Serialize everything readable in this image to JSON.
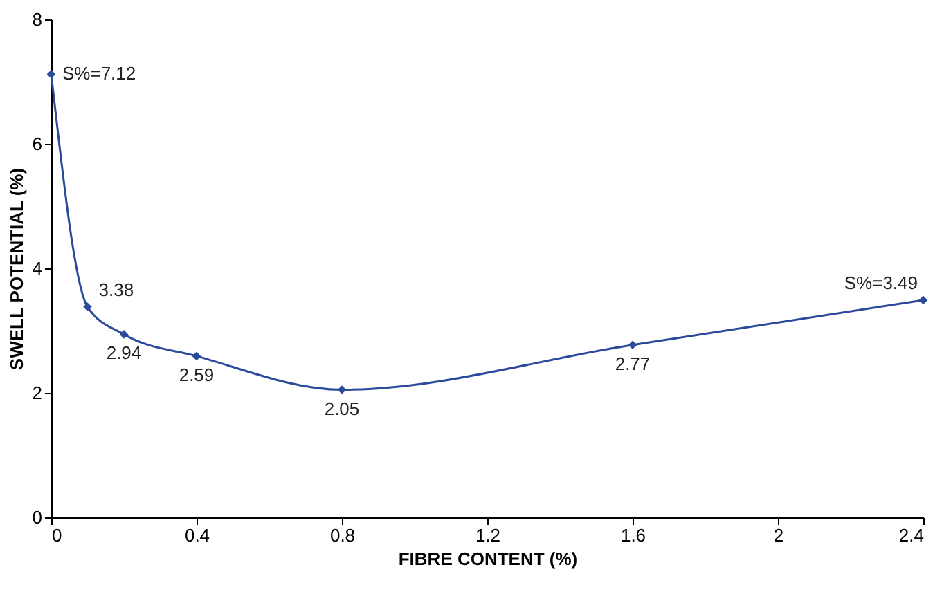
{
  "chart_data": {
    "type": "line",
    "xlabel": "FIBRE CONTENT  (%)",
    "ylabel": "SWELL POTENTIAL  (%)",
    "x": [
      0,
      0.1,
      0.2,
      0.4,
      0.8,
      1.6,
      2.4
    ],
    "series": [
      {
        "color": "#2b4a9b",
        "values": [
          7.12,
          3.38,
          2.94,
          2.59,
          2.05,
          2.77,
          3.49
        ],
        "value_labels": [
          "S%=7.12",
          "3.38",
          "2.94",
          "2.59",
          "2.05",
          "2.77",
          "S%=3.49"
        ]
      }
    ],
    "xlim": [
      0,
      2.4
    ],
    "xticks": [
      0,
      0.4,
      0.8,
      1.2,
      1.6,
      2,
      2.4
    ],
    "ylim": [
      0,
      8
    ],
    "yticks": [
      0,
      2,
      4,
      6,
      8
    ],
    "grid": false,
    "marker": "diamond",
    "line_style": "solid"
  }
}
